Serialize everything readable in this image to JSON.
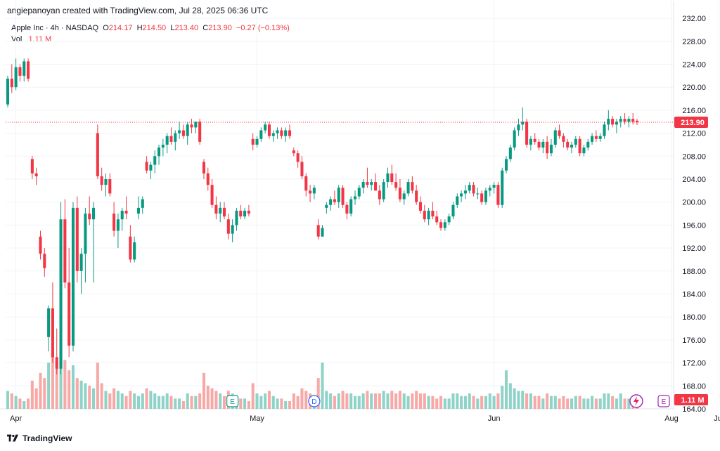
{
  "header": {
    "text": "angiepanoyan created with TradingView.com, Jul 28, 2025 06:36 UTC"
  },
  "legend": {
    "symbol": "Apple Inc · 4h · NASDAQ",
    "o_label": "O",
    "o": "214.17",
    "h_label": "H",
    "h": "214.50",
    "l_label": "L",
    "l": "213.40",
    "c_label": "C",
    "c": "213.90",
    "change": "−0.27 (−0.13%)",
    "vol_label": "Vol",
    "vol": "1.11 M"
  },
  "footer": {
    "brand": "TradingView"
  },
  "colors": {
    "up": "#089981",
    "down": "#f23645",
    "up_vol": "#8fd3c8",
    "down_vol": "#f7a9a7",
    "grid": "#f0f3fa",
    "price_line": "#f23645"
  },
  "chart_data": {
    "type": "candlestick",
    "yticks": [
      "164.00",
      "168.00",
      "172.00",
      "176.00",
      "180.00",
      "184.00",
      "188.00",
      "192.00",
      "196.00",
      "200.00",
      "204.00",
      "208.00",
      "212.00",
      "216.00",
      "220.00",
      "224.00",
      "228.00",
      "232.00"
    ],
    "ytick_values": [
      164,
      168,
      172,
      176,
      180,
      184,
      188,
      192,
      196,
      200,
      204,
      208,
      212,
      216,
      220,
      224,
      228,
      232
    ],
    "ylim": [
      164,
      232.5
    ],
    "xticks": [
      "Apr",
      "May",
      "Jun",
      "Jul",
      "Aug"
    ],
    "last_price_label": "213.90",
    "last_price": 213.9,
    "volume_label": "1.11 M",
    "event_markers": [
      {
        "label": "E",
        "type": "earnings",
        "index": 55
      },
      {
        "label": "D",
        "type": "dividend",
        "index": 75
      },
      {
        "label": "E",
        "type": "earnings-upcoming",
        "index": 215
      }
    ],
    "candles": [
      [
        217.0,
        222.0,
        216.5,
        221.5,
        0.35
      ],
      [
        221.5,
        224.0,
        219.0,
        220.0,
        0.3
      ],
      [
        220.0,
        225.0,
        219.5,
        223.5,
        0.25
      ],
      [
        223.5,
        224.0,
        221.0,
        222.0,
        0.2
      ],
      [
        222.0,
        225.0,
        221.0,
        224.5,
        0.15
      ],
      [
        224.5,
        225.0,
        221.0,
        221.5,
        0.2
      ],
      [
        207.5,
        208.0,
        204.0,
        205.0,
        0.55
      ],
      [
        205.0,
        206.0,
        203.0,
        204.5,
        0.4
      ],
      [
        194.0,
        195.0,
        190.0,
        191.0,
        0.7
      ],
      [
        191.0,
        192.0,
        187.0,
        188.5,
        0.6
      ],
      [
        176.5,
        182.0,
        174.0,
        181.5,
        0.9
      ],
      [
        181.5,
        186.0,
        172.0,
        173.0,
        1.1
      ],
      [
        173.0,
        178.0,
        170.0,
        171.0,
        0.8
      ],
      [
        171.0,
        200.0,
        170.0,
        197.0,
        1.2
      ],
      [
        197.0,
        200.5,
        185.0,
        186.0,
        0.95
      ],
      [
        186.0,
        192.0,
        173.0,
        175.0,
        0.75
      ],
      [
        175.0,
        200.0,
        174.0,
        199.0,
        0.85
      ],
      [
        199.0,
        201.0,
        186.0,
        188.0,
        0.6
      ],
      [
        188.0,
        192.0,
        184.0,
        191.0,
        0.55
      ],
      [
        191.0,
        199.0,
        186.0,
        198.0,
        0.5
      ],
      [
        198.0,
        201.0,
        196.0,
        197.0,
        0.45
      ],
      [
        197.0,
        200.0,
        186.0,
        199.0,
        0.4
      ],
      [
        212.0,
        213.5,
        204.0,
        204.5,
        0.9
      ],
      [
        204.5,
        206.0,
        202.0,
        203.0,
        0.5
      ],
      [
        203.0,
        205.0,
        201.0,
        204.0,
        0.35
      ],
      [
        204.0,
        205.0,
        201.0,
        201.5,
        0.3
      ],
      [
        198.0,
        200.0,
        194.0,
        195.0,
        0.4
      ],
      [
        195.0,
        198.0,
        192.0,
        197.0,
        0.35
      ],
      [
        197.0,
        199.0,
        195.0,
        198.5,
        0.3
      ],
      [
        198.5,
        201.0,
        197.0,
        198.0,
        0.25
      ],
      [
        194.0,
        196.0,
        189.5,
        190.0,
        0.35
      ],
      [
        190.0,
        194.0,
        189.5,
        193.0,
        0.3
      ],
      [
        198.0,
        201.0,
        197.0,
        199.0,
        0.25
      ],
      [
        199.0,
        201.0,
        198.0,
        200.5,
        0.3
      ],
      [
        207.0,
        208.0,
        205.0,
        205.5,
        0.4
      ],
      [
        205.5,
        207.0,
        204.0,
        206.5,
        0.35
      ],
      [
        206.5,
        209.0,
        205.0,
        208.0,
        0.3
      ],
      [
        208.0,
        210.0,
        206.5,
        209.5,
        0.25
      ],
      [
        209.5,
        211.0,
        208.0,
        210.0,
        0.25
      ],
      [
        210.0,
        212.0,
        208.5,
        211.5,
        0.3
      ],
      [
        211.5,
        213.0,
        210.0,
        210.5,
        0.25
      ],
      [
        210.5,
        212.5,
        209.0,
        212.0,
        0.2
      ],
      [
        212.0,
        214.0,
        211.0,
        212.5,
        0.2
      ],
      [
        212.5,
        213.5,
        211.0,
        211.5,
        0.15
      ],
      [
        211.5,
        214.0,
        210.0,
        213.5,
        0.3
      ],
      [
        213.5,
        214.5,
        212.0,
        213.0,
        0.25
      ],
      [
        213.0,
        214.0,
        212.0,
        214.0,
        0.25
      ],
      [
        214.0,
        214.5,
        210.0,
        210.5,
        0.3
      ],
      [
        207.0,
        207.5,
        204.0,
        205.0,
        0.7
      ],
      [
        205.0,
        206.0,
        202.0,
        203.0,
        0.45
      ],
      [
        203.0,
        204.0,
        199.0,
        199.5,
        0.4
      ],
      [
        199.5,
        201.0,
        197.0,
        198.0,
        0.35
      ],
      [
        198.0,
        200.0,
        196.5,
        199.0,
        0.3
      ],
      [
        199.0,
        200.0,
        197.0,
        197.5,
        0.25
      ],
      [
        197.0,
        198.0,
        193.5,
        194.5,
        0.35
      ],
      [
        194.5,
        197.0,
        193.0,
        196.0,
        0.3
      ],
      [
        196.0,
        199.0,
        195.0,
        198.5,
        0.25
      ],
      [
        198.5,
        199.5,
        197.0,
        197.5,
        0.2
      ],
      [
        197.5,
        199.0,
        197.0,
        198.5,
        0.2
      ],
      [
        198.5,
        199.5,
        197.5,
        198.0,
        0.15
      ],
      [
        211.0,
        212.0,
        209.0,
        210.0,
        0.5
      ],
      [
        210.0,
        211.5,
        209.5,
        211.0,
        0.3
      ],
      [
        211.0,
        213.0,
        210.5,
        212.5,
        0.25
      ],
      [
        212.5,
        214.0,
        212.0,
        213.5,
        0.3
      ],
      [
        213.5,
        214.0,
        211.0,
        211.5,
        0.35
      ],
      [
        211.5,
        212.5,
        210.5,
        212.0,
        0.25
      ],
      [
        212.0,
        213.0,
        211.0,
        212.5,
        0.2
      ],
      [
        212.5,
        213.0,
        211.0,
        211.5,
        0.2
      ],
      [
        211.5,
        213.0,
        210.5,
        212.5,
        0.15
      ],
      [
        212.5,
        213.5,
        211.0,
        211.5,
        0.15
      ],
      [
        209.0,
        209.5,
        208.0,
        208.5,
        0.3
      ],
      [
        208.5,
        209.0,
        206.0,
        207.0,
        0.25
      ],
      [
        207.0,
        208.0,
        204.0,
        204.5,
        0.4
      ],
      [
        204.5,
        205.0,
        201.0,
        202.0,
        0.35
      ],
      [
        202.0,
        203.0,
        200.0,
        201.5,
        0.3
      ],
      [
        201.5,
        203.0,
        200.5,
        202.5,
        0.25
      ],
      [
        196.0,
        197.0,
        193.5,
        194.0,
        0.6
      ],
      [
        194.0,
        196.0,
        194.0,
        195.5,
        0.9
      ],
      [
        199.0,
        200.0,
        198.0,
        199.5,
        0.35
      ],
      [
        199.5,
        201.0,
        198.5,
        200.5,
        0.3
      ],
      [
        200.5,
        202.0,
        199.5,
        200.0,
        0.25
      ],
      [
        200.0,
        203.0,
        199.0,
        202.5,
        0.3
      ],
      [
        202.5,
        203.0,
        199.0,
        199.5,
        0.35
      ],
      [
        199.5,
        200.0,
        197.0,
        198.0,
        0.3
      ],
      [
        198.0,
        201.0,
        197.5,
        200.5,
        0.3
      ],
      [
        200.5,
        202.0,
        199.5,
        201.0,
        0.25
      ],
      [
        201.0,
        203.0,
        200.5,
        202.5,
        0.25
      ],
      [
        202.5,
        204.0,
        201.5,
        203.5,
        0.3
      ],
      [
        203.5,
        206.0,
        202.5,
        203.0,
        0.35
      ],
      [
        203.0,
        204.0,
        202.0,
        203.5,
        0.3
      ],
      [
        203.5,
        205.0,
        202.0,
        202.0,
        0.3
      ],
      [
        202.0,
        203.0,
        199.5,
        200.5,
        0.3
      ],
      [
        200.5,
        204.0,
        200.0,
        203.5,
        0.35
      ],
      [
        203.5,
        206.0,
        202.5,
        205.0,
        0.3
      ],
      [
        205.0,
        206.5,
        203.0,
        203.5,
        0.35
      ],
      [
        203.5,
        205.0,
        202.0,
        202.5,
        0.3
      ],
      [
        202.5,
        204.0,
        200.0,
        200.5,
        0.35
      ],
      [
        200.5,
        202.0,
        199.5,
        201.5,
        0.3
      ],
      [
        201.5,
        204.0,
        201.0,
        203.5,
        0.25
      ],
      [
        203.5,
        204.5,
        201.5,
        202.0,
        0.3
      ],
      [
        202.0,
        203.0,
        199.5,
        200.0,
        0.35
      ],
      [
        200.0,
        201.0,
        198.0,
        198.5,
        0.3
      ],
      [
        198.5,
        199.5,
        196.5,
        197.0,
        0.3
      ],
      [
        197.0,
        199.0,
        196.0,
        198.5,
        0.25
      ],
      [
        198.5,
        200.0,
        197.0,
        197.5,
        0.25
      ],
      [
        197.5,
        198.5,
        196.0,
        196.5,
        0.2
      ],
      [
        196.5,
        197.0,
        195.0,
        195.5,
        0.25
      ],
      [
        195.5,
        197.0,
        195.0,
        196.5,
        0.2
      ],
      [
        196.5,
        198.0,
        196.0,
        197.5,
        0.2
      ],
      [
        197.5,
        200.0,
        197.0,
        199.5,
        0.3
      ],
      [
        199.5,
        201.5,
        199.0,
        201.0,
        0.3
      ],
      [
        201.0,
        202.0,
        200.0,
        201.5,
        0.25
      ],
      [
        201.5,
        203.0,
        200.5,
        202.0,
        0.25
      ],
      [
        202.0,
        203.5,
        201.5,
        203.0,
        0.3
      ],
      [
        203.0,
        203.5,
        201.0,
        201.5,
        0.25
      ],
      [
        201.5,
        202.5,
        200.5,
        201.5,
        0.2
      ],
      [
        201.5,
        202.0,
        199.5,
        200.0,
        0.25
      ],
      [
        200.0,
        202.5,
        199.5,
        202.0,
        0.25
      ],
      [
        202.0,
        203.0,
        201.0,
        202.5,
        0.3
      ],
      [
        202.5,
        203.5,
        201.5,
        203.0,
        0.25
      ],
      [
        203.0,
        203.5,
        199.0,
        199.5,
        0.3
      ],
      [
        199.5,
        206.0,
        199.0,
        205.5,
        0.45
      ],
      [
        205.5,
        208.0,
        205.0,
        207.5,
        0.75
      ],
      [
        207.5,
        210.0,
        207.0,
        209.5,
        0.5
      ],
      [
        209.5,
        213.0,
        209.0,
        212.5,
        0.4
      ],
      [
        212.5,
        214.5,
        211.5,
        213.5,
        0.35
      ],
      [
        213.5,
        216.5,
        212.5,
        214.0,
        0.35
      ],
      [
        214.0,
        214.5,
        209.5,
        210.0,
        0.3
      ],
      [
        210.0,
        211.5,
        209.0,
        211.0,
        0.3
      ],
      [
        211.0,
        212.0,
        210.0,
        210.5,
        0.25
      ],
      [
        210.5,
        211.0,
        209.0,
        209.5,
        0.25
      ],
      [
        209.5,
        211.0,
        208.5,
        210.5,
        0.2
      ],
      [
        210.5,
        211.5,
        207.5,
        208.5,
        0.3
      ],
      [
        208.5,
        211.0,
        208.0,
        210.0,
        0.25
      ],
      [
        210.0,
        213.0,
        209.5,
        212.5,
        0.25
      ],
      [
        212.5,
        213.5,
        211.0,
        211.5,
        0.2
      ],
      [
        211.5,
        212.0,
        209.5,
        210.5,
        0.25
      ],
      [
        210.5,
        211.0,
        209.0,
        209.5,
        0.2
      ],
      [
        209.5,
        210.5,
        208.5,
        210.0,
        0.2
      ],
      [
        210.0,
        211.5,
        209.5,
        211.0,
        0.25
      ],
      [
        211.0,
        211.5,
        208.0,
        208.5,
        0.25
      ],
      [
        208.5,
        210.0,
        208.0,
        209.5,
        0.2
      ],
      [
        209.5,
        211.0,
        209.0,
        210.5,
        0.2
      ],
      [
        210.5,
        212.0,
        210.0,
        211.5,
        0.25
      ],
      [
        211.5,
        212.5,
        210.5,
        211.0,
        0.2
      ],
      [
        211.0,
        212.0,
        210.5,
        211.5,
        0.2
      ],
      [
        211.5,
        214.0,
        211.0,
        213.5,
        0.3
      ],
      [
        213.5,
        216.0,
        212.5,
        214.5,
        0.3
      ],
      [
        214.5,
        215.0,
        213.0,
        213.5,
        0.25
      ],
      [
        213.5,
        214.5,
        212.0,
        214.0,
        0.2
      ],
      [
        214.0,
        215.0,
        213.0,
        214.5,
        0.3
      ],
      [
        214.5,
        215.5,
        213.5,
        214.0,
        0.2
      ],
      [
        214.0,
        215.0,
        213.0,
        214.5,
        0.2
      ],
      [
        214.5,
        215.5,
        213.5,
        214.0,
        0.15
      ],
      [
        214.17,
        214.5,
        213.4,
        213.9,
        0.15
      ]
    ]
  }
}
